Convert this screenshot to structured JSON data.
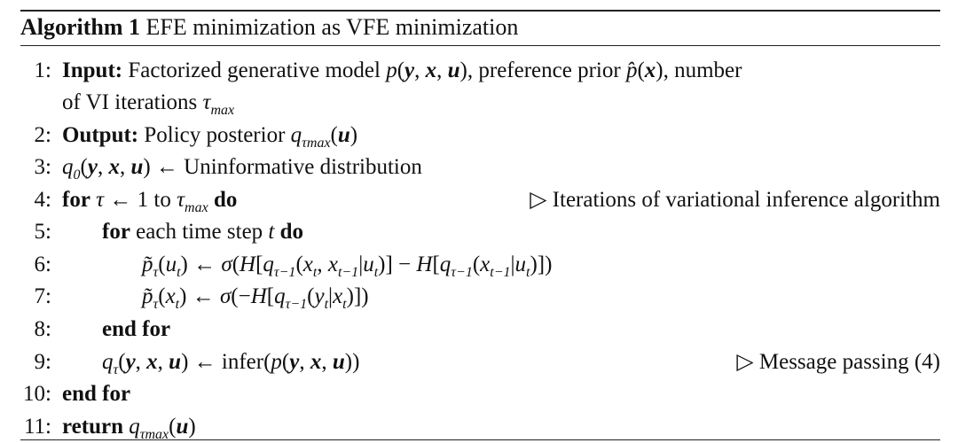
{
  "title": {
    "label": "Algorithm 1",
    "text": "EFE minimization as VFE minimization"
  },
  "lines": [
    {
      "num": "1:",
      "indent": 0,
      "parts": [
        {
          "t": "Input:",
          "s": "b"
        },
        {
          "t": " Factorized generative model "
        },
        {
          "t": "p",
          "s": "i"
        },
        {
          "t": "("
        },
        {
          "t": "y",
          "s": "bi"
        },
        {
          "t": ", "
        },
        {
          "t": "x",
          "s": "bi"
        },
        {
          "t": ", "
        },
        {
          "t": "u",
          "s": "bi"
        },
        {
          "t": "), preference prior "
        },
        {
          "t": "p̂",
          "s": "i"
        },
        {
          "t": "("
        },
        {
          "t": "x",
          "s": "bi"
        },
        {
          "t": "), number"
        }
      ]
    },
    {
      "num": "",
      "indent": 0,
      "parts": [
        {
          "t": "of VI iterations "
        },
        {
          "t": "τ",
          "s": "i"
        },
        {
          "t": "max",
          "s": "sub"
        }
      ]
    },
    {
      "num": "2:",
      "indent": 0,
      "parts": [
        {
          "t": "Output:",
          "s": "b"
        },
        {
          "t": " Policy posterior "
        },
        {
          "t": "q",
          "s": "i"
        },
        {
          "t": "τmax",
          "s": "sub"
        },
        {
          "t": "("
        },
        {
          "t": "u",
          "s": "bi"
        },
        {
          "t": ")"
        }
      ]
    },
    {
      "num": "3:",
      "indent": 0,
      "parts": [
        {
          "t": "q",
          "s": "i"
        },
        {
          "t": "0",
          "s": "sub"
        },
        {
          "t": "("
        },
        {
          "t": "y",
          "s": "bi"
        },
        {
          "t": ", "
        },
        {
          "t": "x",
          "s": "bi"
        },
        {
          "t": ", "
        },
        {
          "t": "u",
          "s": "bi"
        },
        {
          "t": ") ← Uninformative distribution"
        }
      ]
    },
    {
      "num": "4:",
      "indent": 0,
      "parts": [
        {
          "t": "for",
          "s": "b"
        },
        {
          "t": " "
        },
        {
          "t": "τ",
          "s": "i"
        },
        {
          "t": " ← 1 to "
        },
        {
          "t": "τ",
          "s": "i"
        },
        {
          "t": "max",
          "s": "sub"
        },
        {
          "t": " "
        },
        {
          "t": "do",
          "s": "b"
        }
      ],
      "comment": "▷ Iterations of variational inference algorithm"
    },
    {
      "num": "5:",
      "indent": 1,
      "parts": [
        {
          "t": "for",
          "s": "b"
        },
        {
          "t": " each time step "
        },
        {
          "t": "t",
          "s": "i"
        },
        {
          "t": " "
        },
        {
          "t": "do",
          "s": "b"
        }
      ]
    },
    {
      "num": "6:",
      "indent": 2,
      "parts": [
        {
          "t": "p̃",
          "s": "i"
        },
        {
          "t": "τ",
          "s": "sub"
        },
        {
          "t": "("
        },
        {
          "t": "u",
          "s": "i"
        },
        {
          "t": "t",
          "s": "sub"
        },
        {
          "t": ") ← "
        },
        {
          "t": "σ",
          "s": "i"
        },
        {
          "t": "("
        },
        {
          "t": "H",
          "s": "i"
        },
        {
          "t": "["
        },
        {
          "t": "q",
          "s": "i"
        },
        {
          "t": "τ−1",
          "s": "sub"
        },
        {
          "t": "("
        },
        {
          "t": "x",
          "s": "i"
        },
        {
          "t": "t",
          "s": "sub"
        },
        {
          "t": ", "
        },
        {
          "t": "x",
          "s": "i"
        },
        {
          "t": "t−1",
          "s": "sub"
        },
        {
          "t": "|"
        },
        {
          "t": "u",
          "s": "i"
        },
        {
          "t": "t",
          "s": "sub"
        },
        {
          "t": ")] − "
        },
        {
          "t": "H",
          "s": "i"
        },
        {
          "t": "["
        },
        {
          "t": "q",
          "s": "i"
        },
        {
          "t": "τ−1",
          "s": "sub"
        },
        {
          "t": "("
        },
        {
          "t": "x",
          "s": "i"
        },
        {
          "t": "t−1",
          "s": "sub"
        },
        {
          "t": "|"
        },
        {
          "t": "u",
          "s": "i"
        },
        {
          "t": "t",
          "s": "sub"
        },
        {
          "t": ")])"
        }
      ]
    },
    {
      "num": "7:",
      "indent": 2,
      "parts": [
        {
          "t": "p̃",
          "s": "i"
        },
        {
          "t": "τ",
          "s": "sub"
        },
        {
          "t": "("
        },
        {
          "t": "x",
          "s": "i"
        },
        {
          "t": "t",
          "s": "sub"
        },
        {
          "t": ") ← "
        },
        {
          "t": "σ",
          "s": "i"
        },
        {
          "t": "(−"
        },
        {
          "t": "H",
          "s": "i"
        },
        {
          "t": "["
        },
        {
          "t": "q",
          "s": "i"
        },
        {
          "t": "τ−1",
          "s": "sub"
        },
        {
          "t": "("
        },
        {
          "t": "y",
          "s": "i"
        },
        {
          "t": "t",
          "s": "sub"
        },
        {
          "t": "|"
        },
        {
          "t": "x",
          "s": "i"
        },
        {
          "t": "t",
          "s": "sub"
        },
        {
          "t": ")])"
        }
      ]
    },
    {
      "num": "8:",
      "indent": 1,
      "parts": [
        {
          "t": "end for",
          "s": "b"
        }
      ]
    },
    {
      "num": "9:",
      "indent": 1,
      "parts": [
        {
          "t": "q",
          "s": "i"
        },
        {
          "t": "τ",
          "s": "sub"
        },
        {
          "t": "("
        },
        {
          "t": "y",
          "s": "bi"
        },
        {
          "t": ", "
        },
        {
          "t": "x",
          "s": "bi"
        },
        {
          "t": ", "
        },
        {
          "t": "u",
          "s": "bi"
        },
        {
          "t": ") ← infer("
        },
        {
          "t": "p",
          "s": "i"
        },
        {
          "t": "("
        },
        {
          "t": "y",
          "s": "bi"
        },
        {
          "t": ", "
        },
        {
          "t": "x",
          "s": "bi"
        },
        {
          "t": ", "
        },
        {
          "t": "u",
          "s": "bi"
        },
        {
          "t": "))"
        }
      ],
      "comment": "▷ Message passing (4)"
    },
    {
      "num": "10:",
      "indent": 0,
      "parts": [
        {
          "t": "end for",
          "s": "b"
        }
      ]
    },
    {
      "num": "11:",
      "indent": 0,
      "parts": [
        {
          "t": "return",
          "s": "b"
        },
        {
          "t": " "
        },
        {
          "t": "q",
          "s": "i"
        },
        {
          "t": "τmax",
          "s": "sub"
        },
        {
          "t": "("
        },
        {
          "t": "u",
          "s": "bi"
        },
        {
          "t": ")"
        }
      ]
    }
  ]
}
